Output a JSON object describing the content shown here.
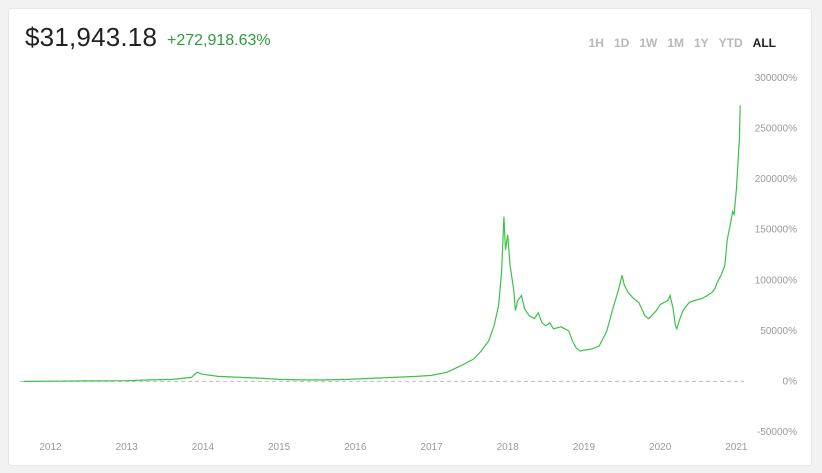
{
  "header": {
    "price": "$31,943.18",
    "change": "+272,918.63%"
  },
  "ranges": [
    {
      "label": "1H",
      "active": false
    },
    {
      "label": "1D",
      "active": false
    },
    {
      "label": "1W",
      "active": false
    },
    {
      "label": "1M",
      "active": false
    },
    {
      "label": "1Y",
      "active": false
    },
    {
      "label": "YTD",
      "active": false
    },
    {
      "label": "ALL",
      "active": true
    }
  ],
  "colors": {
    "line": "#3cc24a",
    "positive_text": "#2e9b3a",
    "zero_line": "#bdbdbd"
  },
  "chart_data": {
    "type": "line",
    "title": "",
    "xlabel": "",
    "ylabel": "",
    "ylim": [
      -50000,
      300000
    ],
    "xlim": [
      2011.6,
      2021.1
    ],
    "y_ticks": [
      "300000%",
      "250000%",
      "200000%",
      "150000%",
      "100000%",
      "50000%",
      "0%",
      "-50000%"
    ],
    "y_tick_values": [
      300000,
      250000,
      200000,
      150000,
      100000,
      50000,
      0,
      -50000
    ],
    "x_ticks": [
      "2012",
      "2013",
      "2014",
      "2015",
      "2016",
      "2017",
      "2018",
      "2019",
      "2020",
      "2021"
    ],
    "x_tick_values": [
      2012,
      2013,
      2014,
      2015,
      2016,
      2017,
      2018,
      2019,
      2020,
      2021
    ],
    "zero_line": true,
    "series": [
      {
        "x": [
          2011.65,
          2012.0,
          2012.5,
          2013.0,
          2013.3,
          2013.6,
          2013.85,
          2013.92,
          2014.0,
          2014.2,
          2014.5,
          2014.8,
          2015.0,
          2015.3,
          2015.6,
          2015.9,
          2016.2,
          2016.5,
          2016.8,
          2017.0,
          2017.2,
          2017.4,
          2017.55,
          2017.65,
          2017.75,
          2017.82,
          2017.88,
          2017.92,
          2017.95,
          2017.97,
          2018.0,
          2018.03,
          2018.08,
          2018.1,
          2018.13,
          2018.18,
          2018.22,
          2018.28,
          2018.35,
          2018.4,
          2018.45,
          2018.5,
          2018.55,
          2018.6,
          2018.7,
          2018.8,
          2018.85,
          2018.9,
          2018.95,
          2019.0,
          2019.1,
          2019.2,
          2019.3,
          2019.38,
          2019.45,
          2019.5,
          2019.53,
          2019.58,
          2019.65,
          2019.72,
          2019.8,
          2019.85,
          2019.9,
          2019.95,
          2020.0,
          2020.05,
          2020.1,
          2020.13,
          2020.17,
          2020.2,
          2020.22,
          2020.25,
          2020.3,
          2020.38,
          2020.45,
          2020.55,
          2020.62,
          2020.68,
          2020.72,
          2020.75,
          2020.8,
          2020.85,
          2020.88,
          2020.92,
          2020.95,
          2020.97,
          2021.0,
          2021.02,
          2021.04,
          2021.05
        ],
        "y": [
          0,
          200,
          500,
          700,
          1500,
          2000,
          4000,
          9000,
          7000,
          5000,
          4000,
          3000,
          2000,
          1500,
          1500,
          2000,
          3000,
          4000,
          5000,
          6000,
          9000,
          16000,
          22000,
          30000,
          40000,
          55000,
          75000,
          110000,
          163000,
          130000,
          145000,
          115000,
          90000,
          70000,
          80000,
          85000,
          72000,
          65000,
          62000,
          68000,
          58000,
          55000,
          58000,
          52000,
          54000,
          50000,
          40000,
          33000,
          30000,
          31000,
          32000,
          35000,
          50000,
          72000,
          90000,
          105000,
          95000,
          88000,
          82000,
          78000,
          65000,
          62000,
          66000,
          70000,
          76000,
          78000,
          80000,
          85000,
          72000,
          55000,
          52000,
          60000,
          70000,
          78000,
          80000,
          82000,
          85000,
          88000,
          92000,
          98000,
          105000,
          115000,
          140000,
          155000,
          168000,
          165000,
          190000,
          215000,
          240000,
          273000
        ]
      }
    ]
  }
}
